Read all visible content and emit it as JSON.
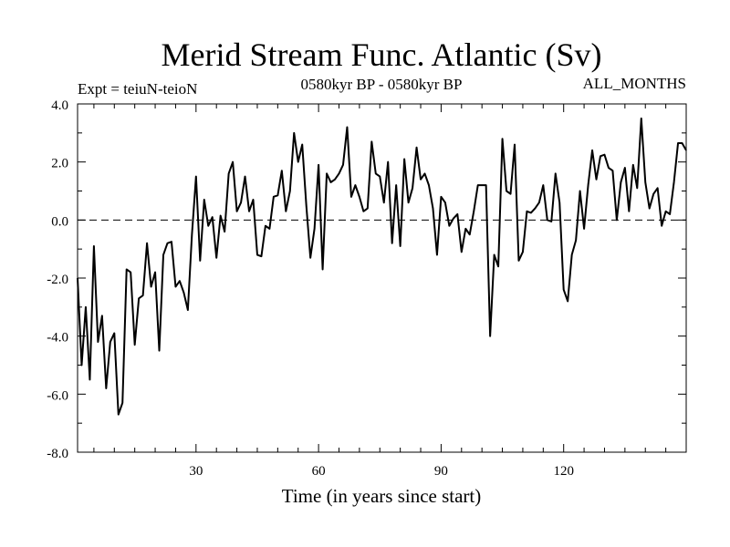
{
  "header": {
    "title": "Merid Stream Func. Atlantic (Sv)",
    "expt": "Expt = teiuN-teioN",
    "period": "0580kyr BP - 0580kyr BP",
    "months": "ALL_MONTHS"
  },
  "chart_data": {
    "type": "line",
    "title": "Merid Stream Func. Atlantic (Sv)",
    "xlabel": "Time (in years since start)",
    "ylabel": "",
    "xlim": [
      1,
      150
    ],
    "ylim": [
      -8,
      4
    ],
    "xticks": [
      30,
      60,
      90,
      120
    ],
    "xtick_labels": [
      "30",
      "60",
      "90",
      "120"
    ],
    "yticks": [
      -8,
      -6,
      -4,
      -2,
      0,
      2,
      4
    ],
    "ytick_labels": [
      "-8.0",
      "-6.0",
      "-4.0",
      "-2.0",
      "0.0",
      "2.0",
      "4.0"
    ],
    "reference_line": 0,
    "series": [
      {
        "name": "teiuN-teioN",
        "x": [
          1,
          2,
          3,
          4,
          5,
          6,
          7,
          8,
          9,
          10,
          11,
          12,
          13,
          14,
          15,
          16,
          17,
          18,
          19,
          20,
          21,
          22,
          23,
          24,
          25,
          26,
          27,
          28,
          29,
          30,
          31,
          32,
          33,
          34,
          35,
          36,
          37,
          38,
          39,
          40,
          41,
          42,
          43,
          44,
          45,
          46,
          47,
          48,
          49,
          50,
          51,
          52,
          53,
          54,
          55,
          56,
          57,
          58,
          59,
          60,
          61,
          62,
          63,
          64,
          65,
          66,
          67,
          68,
          69,
          70,
          71,
          72,
          73,
          74,
          75,
          76,
          77,
          78,
          79,
          80,
          81,
          82,
          83,
          84,
          85,
          86,
          87,
          88,
          89,
          90,
          91,
          92,
          93,
          94,
          95,
          96,
          97,
          98,
          99,
          100,
          101,
          102,
          103,
          104,
          105,
          106,
          107,
          108,
          109,
          110,
          111,
          112,
          113,
          114,
          115,
          116,
          117,
          118,
          119,
          120,
          121,
          122,
          123,
          124,
          125,
          126,
          127,
          128,
          129,
          130,
          131,
          132,
          133,
          134,
          135,
          136,
          137,
          138,
          139,
          140,
          141,
          142,
          143,
          144,
          145,
          146,
          147,
          148,
          149,
          150
        ],
        "y": [
          -2.0,
          -5.0,
          -3.0,
          -5.5,
          -0.9,
          -4.2,
          -3.3,
          -5.8,
          -4.2,
          -3.9,
          -6.7,
          -6.3,
          -1.7,
          -1.8,
          -4.3,
          -2.7,
          -2.6,
          -0.8,
          -2.3,
          -1.8,
          -4.5,
          -1.2,
          -0.8,
          -0.75,
          -2.3,
          -2.1,
          -2.5,
          -3.1,
          -0.5,
          1.5,
          -1.4,
          0.7,
          -0.2,
          0.1,
          -1.3,
          0.15,
          -0.4,
          1.6,
          2.0,
          0.3,
          0.6,
          1.5,
          0.3,
          0.7,
          -1.2,
          -1.25,
          -0.2,
          -0.3,
          0.8,
          0.85,
          1.7,
          0.3,
          1.0,
          3.0,
          2.0,
          2.6,
          0.5,
          -1.3,
          -0.3,
          1.9,
          -1.7,
          1.6,
          1.3,
          1.4,
          1.6,
          1.9,
          3.2,
          0.8,
          1.2,
          0.8,
          0.3,
          0.4,
          2.7,
          1.6,
          1.5,
          0.6,
          2.0,
          -0.8,
          1.2,
          -0.9,
          2.1,
          0.6,
          1.1,
          2.5,
          1.4,
          1.6,
          1.2,
          0.4,
          -1.2,
          0.8,
          0.6,
          -0.2,
          0.05,
          0.2,
          -1.1,
          -0.3,
          -0.5,
          0.3,
          1.2,
          1.2,
          1.2,
          -4.0,
          -1.2,
          -1.6,
          2.8,
          1.0,
          0.9,
          2.6,
          -1.4,
          -1.1,
          0.3,
          0.25,
          0.4,
          0.6,
          1.2,
          0.0,
          -0.05,
          1.6,
          0.6,
          -2.4,
          -2.8,
          -1.2,
          -0.7,
          1.0,
          -0.3,
          1.2,
          2.4,
          1.4,
          2.2,
          2.25,
          1.8,
          1.7,
          0.0,
          1.3,
          1.8,
          0.3,
          1.9,
          1.1,
          3.5,
          1.3,
          0.4,
          0.9,
          1.1,
          -0.2,
          0.3,
          0.2,
          1.3,
          2.65,
          2.65,
          2.4
        ]
      }
    ]
  }
}
